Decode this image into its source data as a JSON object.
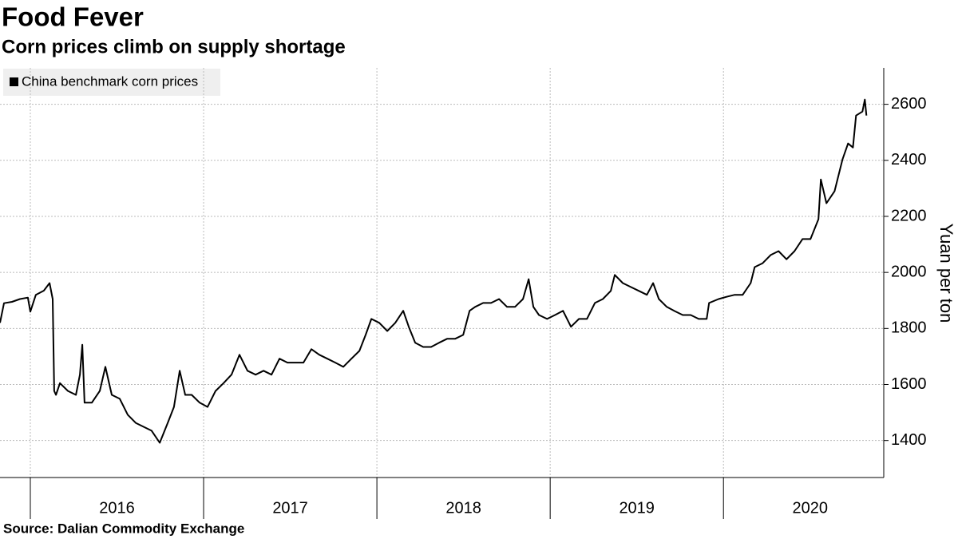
{
  "chart_data": {
    "type": "line",
    "title": "Food Fever",
    "subtitle": "Corn prices climb on supply shortage",
    "source": "Source: Dalian Commodity Exchange",
    "y_axis_label": "Yuan per ton",
    "legend_position": "top-left",
    "grid": true,
    "xlim": [
      2015.825,
      2020.925
    ],
    "year_bounds": [
      2016,
      2017,
      2018,
      2019,
      2020
    ],
    "xticks": [
      {
        "value": 2016.5,
        "label": "2016"
      },
      {
        "value": 2017.5,
        "label": "2017"
      },
      {
        "value": 2018.5,
        "label": "2018"
      },
      {
        "value": 2019.5,
        "label": "2019"
      },
      {
        "value": 2020.5,
        "label": "2020"
      }
    ],
    "ylim": [
      1268,
      2730
    ],
    "yticks": [
      1400,
      1600,
      1800,
      2000,
      2200,
      2400,
      2600
    ],
    "x": [
      2015.825,
      2015.848,
      2015.894,
      2015.94,
      2015.986,
      2016.0,
      2016.032,
      2016.078,
      2016.111,
      2016.129,
      2016.138,
      2016.148,
      2016.171,
      2016.217,
      2016.263,
      2016.286,
      2016.3,
      2016.313,
      2016.355,
      2016.401,
      2016.433,
      2016.47,
      2016.516,
      2016.562,
      2016.608,
      2016.654,
      2016.7,
      2016.747,
      2016.793,
      2016.829,
      2016.862,
      2016.894,
      2016.931,
      2016.977,
      2017.023,
      2017.069,
      2017.115,
      2017.161,
      2017.207,
      2017.253,
      2017.3,
      2017.346,
      2017.392,
      2017.438,
      2017.484,
      2017.53,
      2017.576,
      2017.622,
      2017.668,
      2017.714,
      2017.76,
      2017.806,
      2017.853,
      2017.899,
      2017.935,
      2017.968,
      2018.014,
      2018.06,
      2018.106,
      2018.152,
      2018.184,
      2018.221,
      2018.267,
      2018.313,
      2018.359,
      2018.405,
      2018.451,
      2018.498,
      2018.535,
      2018.567,
      2018.613,
      2018.659,
      2018.705,
      2018.751,
      2018.797,
      2018.843,
      2018.876,
      2018.903,
      2018.935,
      2018.982,
      2019.028,
      2019.074,
      2019.12,
      2019.166,
      2019.212,
      2019.258,
      2019.304,
      2019.35,
      2019.373,
      2019.419,
      2019.465,
      2019.512,
      2019.558,
      2019.594,
      2019.627,
      2019.673,
      2019.719,
      2019.765,
      2019.811,
      2019.857,
      2019.903,
      2019.917,
      2019.972,
      2020.018,
      2020.065,
      2020.111,
      2020.157,
      2020.18,
      2020.226,
      2020.272,
      2020.318,
      2020.364,
      2020.41,
      2020.456,
      2020.502,
      2020.548,
      2020.562,
      2020.594,
      2020.641,
      2020.687,
      2020.719,
      2020.747,
      2020.765,
      2020.802,
      2020.816,
      2020.825
    ],
    "series": [
      {
        "name": "China benchmark corn prices",
        "color": "#000000",
        "values": [
          1820,
          1890,
          1895,
          1905,
          1910,
          1860,
          1920,
          1935,
          1962,
          1905,
          1577,
          1563,
          1605,
          1577,
          1563,
          1635,
          1742,
          1535,
          1535,
          1577,
          1663,
          1563,
          1549,
          1492,
          1463,
          1449,
          1435,
          1392,
          1463,
          1520,
          1649,
          1563,
          1563,
          1535,
          1520,
          1577,
          1605,
          1635,
          1706,
          1649,
          1635,
          1649,
          1635,
          1692,
          1678,
          1678,
          1678,
          1726,
          1706,
          1692,
          1678,
          1663,
          1692,
          1720,
          1777,
          1834,
          1820,
          1791,
          1820,
          1863,
          1806,
          1749,
          1734,
          1734,
          1749,
          1763,
          1763,
          1777,
          1863,
          1877,
          1891,
          1891,
          1905,
          1877,
          1877,
          1905,
          1976,
          1877,
          1848,
          1834,
          1848,
          1863,
          1806,
          1834,
          1834,
          1891,
          1905,
          1934,
          1991,
          1962,
          1948,
          1934,
          1920,
          1962,
          1905,
          1877,
          1862,
          1848,
          1848,
          1834,
          1834,
          1891,
          1905,
          1913,
          1920,
          1920,
          1962,
          2019,
          2033,
          2062,
          2076,
          2047,
          2076,
          2119,
          2119,
          2190,
          2332,
          2247,
          2290,
          2403,
          2460,
          2446,
          2560,
          2574,
          2617,
          2560
        ]
      }
    ]
  }
}
